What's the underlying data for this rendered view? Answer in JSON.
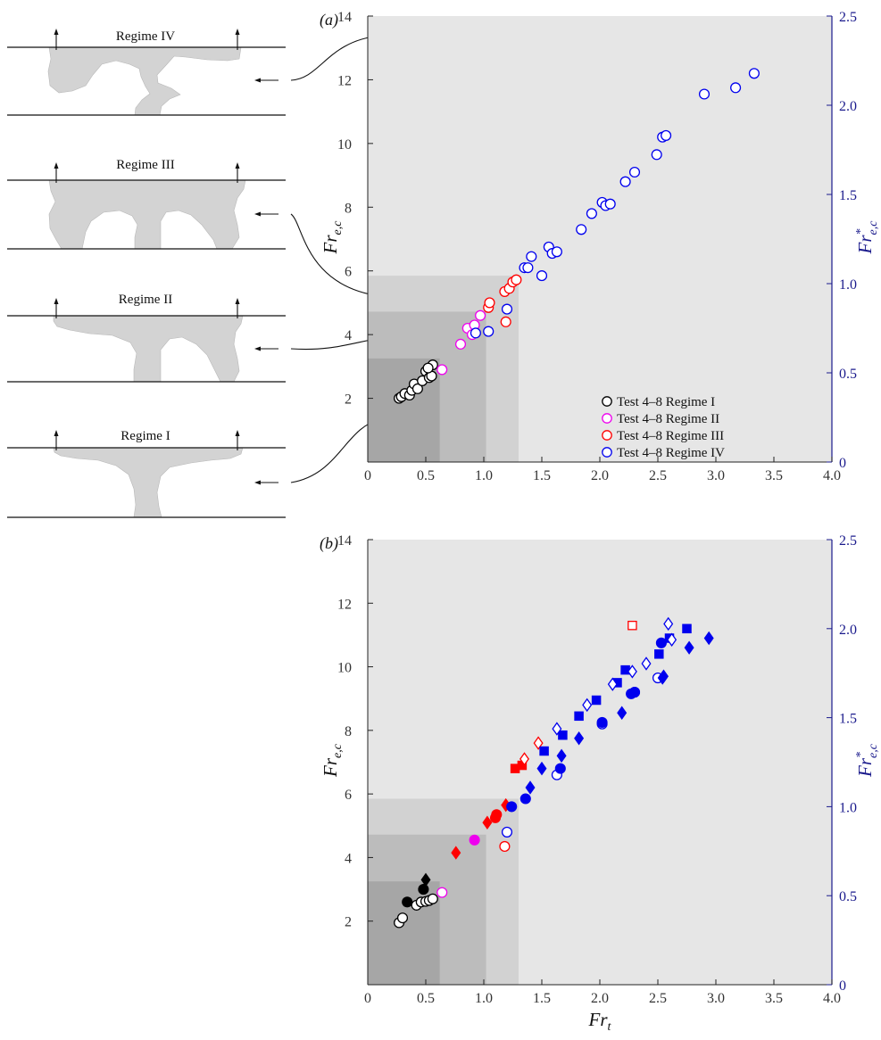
{
  "colors": {
    "outer_band": "#e6e6e6",
    "band_III": "#d2d2d2",
    "band_II": "#bcbcbc",
    "band_I": "#a6a6a6",
    "plume": "#d3d3d3",
    "regime_I": "#000000",
    "regime_II": "#ee00ee",
    "regime_III": "#ff0000",
    "regime_IV": "#0000ee",
    "right_axis": "#1a1a8c"
  },
  "schematics": [
    {
      "label": "Regime IV",
      "shape": "regime-iv"
    },
    {
      "label": "Regime III",
      "shape": "regime-iii"
    },
    {
      "label": "Regime II",
      "shape": "regime-ii"
    },
    {
      "label": "Regime I",
      "shape": "regime-i"
    }
  ],
  "chart_data": [
    {
      "type": "scatter",
      "panel": "(a)",
      "xlabel": "",
      "ylabel": "Fr",
      "ylabel_sub": "e,c",
      "ylabel2": "Fr",
      "ylabel2_sup": "*",
      "ylabel2_sub": "e,c",
      "xlim": [
        0,
        4.0
      ],
      "ylim": [
        0,
        14
      ],
      "y2lim": [
        0,
        2.5
      ],
      "xticks": [
        "0",
        "0.5",
        "1.0",
        "1.5",
        "2.0",
        "2.5",
        "3.0",
        "3.5",
        "4.0"
      ],
      "yticks": [
        "2",
        "4",
        "6",
        "8",
        "10",
        "12",
        "14"
      ],
      "y2ticks": [
        "0",
        "0.5",
        "1.0",
        "1.5",
        "2.0",
        "2.5"
      ],
      "regions": [
        {
          "x_max": 1.3,
          "y_max": 5.85
        },
        {
          "x_max": 1.02,
          "y_max": 4.72
        },
        {
          "x_max": 0.62,
          "y_max": 3.25
        }
      ],
      "legend": {
        "placement": "bottom-right",
        "entries": [
          {
            "label": "Test 4–8 Regime I",
            "color": "#000000"
          },
          {
            "label": "Test 4–8 Regime II",
            "color": "#ee00ee"
          },
          {
            "label": "Test 4–8 Regime III",
            "color": "#ff0000"
          },
          {
            "label": "Test 4–8 Regime IV",
            "color": "#0000ee"
          }
        ]
      },
      "series": [
        {
          "regime": "I",
          "marker": "circle",
          "filled": false,
          "color": "#000000",
          "points": [
            [
              0.27,
              2.0
            ],
            [
              0.29,
              2.05
            ],
            [
              0.32,
              2.15
            ],
            [
              0.36,
              2.1
            ],
            [
              0.38,
              2.25
            ],
            [
              0.4,
              2.45
            ],
            [
              0.43,
              2.3
            ],
            [
              0.47,
              2.55
            ],
            [
              0.5,
              2.85
            ],
            [
              0.53,
              2.65
            ],
            [
              0.55,
              2.7
            ],
            [
              0.56,
              3.05
            ],
            [
              0.52,
              2.95
            ]
          ]
        },
        {
          "regime": "II",
          "marker": "circle",
          "filled": false,
          "color": "#ee00ee",
          "points": [
            [
              0.64,
              2.9
            ],
            [
              0.8,
              3.7
            ],
            [
              0.86,
              4.2
            ],
            [
              0.92,
              4.3
            ],
            [
              0.97,
              4.6
            ],
            [
              0.9,
              4.0
            ]
          ]
        },
        {
          "regime": "III",
          "marker": "circle",
          "filled": false,
          "color": "#ff0000",
          "points": [
            [
              1.04,
              4.85
            ],
            [
              1.05,
              5.0
            ],
            [
              1.18,
              5.35
            ],
            [
              1.22,
              5.45
            ],
            [
              1.25,
              5.65
            ],
            [
              1.28,
              5.72
            ],
            [
              1.19,
              4.4
            ]
          ]
        },
        {
          "regime": "IV",
          "marker": "circle",
          "filled": false,
          "color": "#0000ee",
          "points": [
            [
              0.93,
              4.05
            ],
            [
              1.04,
              4.1
            ],
            [
              1.2,
              4.8
            ],
            [
              1.35,
              6.1
            ],
            [
              1.38,
              6.1
            ],
            [
              1.41,
              6.45
            ],
            [
              1.5,
              5.85
            ],
            [
              1.56,
              6.75
            ],
            [
              1.59,
              6.55
            ],
            [
              1.63,
              6.6
            ],
            [
              1.84,
              7.3
            ],
            [
              1.93,
              7.8
            ],
            [
              2.02,
              8.15
            ],
            [
              2.05,
              8.05
            ],
            [
              2.09,
              8.1
            ],
            [
              2.22,
              8.8
            ],
            [
              2.3,
              9.1
            ],
            [
              2.49,
              9.65
            ],
            [
              2.54,
              10.2
            ],
            [
              2.57,
              10.25
            ],
            [
              2.9,
              11.55
            ],
            [
              3.17,
              11.75
            ],
            [
              3.33,
              12.2
            ]
          ]
        }
      ]
    },
    {
      "type": "scatter",
      "panel": "(b)",
      "xlabel": "Fr",
      "xlabel_sub": "t",
      "ylabel": "Fr",
      "ylabel_sub": "e,c",
      "ylabel2": "Fr",
      "ylabel2_sup": "*",
      "ylabel2_sub": "e,c",
      "xlim": [
        0,
        4.0
      ],
      "ylim": [
        0,
        14
      ],
      "y2lim": [
        0,
        2.5
      ],
      "xticks": [
        "0",
        "0.5",
        "1.0",
        "1.5",
        "2.0",
        "2.5",
        "3.0",
        "3.5",
        "4.0"
      ],
      "yticks": [
        "2",
        "4",
        "6",
        "8",
        "10",
        "12",
        "14"
      ],
      "y2ticks": [
        "0",
        "0.5",
        "1.0",
        "1.5",
        "2.0",
        "2.5"
      ],
      "regions": [
        {
          "x_max": 1.3,
          "y_max": 5.85
        },
        {
          "x_max": 1.02,
          "y_max": 4.72
        },
        {
          "x_max": 0.62,
          "y_max": 3.25
        }
      ],
      "series": [
        {
          "regime": "I",
          "marker": "circle",
          "filled": false,
          "color": "#000000",
          "points": [
            [
              0.27,
              1.95
            ],
            [
              0.3,
              2.1
            ],
            [
              0.42,
              2.5
            ],
            [
              0.46,
              2.6
            ],
            [
              0.5,
              2.62
            ],
            [
              0.53,
              2.65
            ],
            [
              0.56,
              2.7
            ]
          ]
        },
        {
          "regime": "I",
          "marker": "circle",
          "filled": true,
          "color": "#000000",
          "points": [
            [
              0.34,
              2.6
            ],
            [
              0.48,
              3.0
            ]
          ]
        },
        {
          "regime": "I",
          "marker": "diamond",
          "filled": true,
          "color": "#000000",
          "points": [
            [
              0.5,
              3.3
            ]
          ]
        },
        {
          "regime": "II",
          "marker": "circle",
          "filled": false,
          "color": "#ee00ee",
          "points": [
            [
              0.64,
              2.9
            ]
          ]
        },
        {
          "regime": "II",
          "marker": "circle",
          "filled": true,
          "color": "#ee00ee",
          "points": [
            [
              0.92,
              4.55
            ]
          ]
        },
        {
          "regime": "III",
          "marker": "diamond",
          "filled": true,
          "color": "#ff0000",
          "points": [
            [
              0.76,
              4.15
            ],
            [
              1.03,
              5.1
            ],
            [
              1.19,
              5.65
            ]
          ]
        },
        {
          "regime": "III",
          "marker": "circle",
          "filled": true,
          "color": "#ff0000",
          "points": [
            [
              1.1,
              5.25
            ],
            [
              1.11,
              5.35
            ]
          ]
        },
        {
          "regime": "III",
          "marker": "square",
          "filled": true,
          "color": "#ff0000",
          "points": [
            [
              1.27,
              6.8
            ],
            [
              1.33,
              6.9
            ]
          ]
        },
        {
          "regime": "III",
          "marker": "diamond",
          "filled": false,
          "color": "#ff0000",
          "points": [
            [
              1.35,
              7.1
            ],
            [
              1.47,
              7.6
            ]
          ]
        },
        {
          "regime": "III",
          "marker": "circle",
          "filled": false,
          "color": "#ff0000",
          "points": [
            [
              1.18,
              4.35
            ]
          ]
        },
        {
          "regime": "III",
          "marker": "square",
          "filled": false,
          "color": "#ff0000",
          "points": [
            [
              2.28,
              11.3
            ]
          ]
        },
        {
          "regime": "IV",
          "marker": "circle",
          "filled": false,
          "color": "#0000ee",
          "points": [
            [
              1.2,
              4.8
            ],
            [
              1.63,
              6.6
            ],
            [
              2.02,
              8.2
            ],
            [
              2.3,
              9.2
            ],
            [
              2.5,
              9.65
            ]
          ]
        },
        {
          "regime": "IV",
          "marker": "circle",
          "filled": true,
          "color": "#0000ee",
          "points": [
            [
              1.24,
              5.6
            ],
            [
              1.36,
              5.85
            ],
            [
              1.66,
              6.8
            ],
            [
              2.02,
              8.25
            ],
            [
              2.27,
              9.15
            ],
            [
              2.3,
              9.2
            ],
            [
              2.53,
              10.75
            ]
          ]
        },
        {
          "regime": "IV",
          "marker": "diamond",
          "filled": true,
          "color": "#0000ee",
          "points": [
            [
              1.4,
              6.2
            ],
            [
              1.5,
              6.8
            ],
            [
              1.67,
              7.2
            ],
            [
              1.82,
              7.75
            ],
            [
              2.19,
              8.55
            ],
            [
              2.54,
              9.65
            ],
            [
              2.55,
              9.7
            ],
            [
              2.77,
              10.6
            ],
            [
              2.94,
              10.9
            ]
          ]
        },
        {
          "regime": "IV",
          "marker": "square",
          "filled": true,
          "color": "#0000ee",
          "points": [
            [
              1.52,
              7.35
            ],
            [
              1.68,
              7.85
            ],
            [
              1.82,
              8.45
            ],
            [
              1.97,
              8.95
            ],
            [
              2.15,
              9.5
            ],
            [
              2.22,
              9.9
            ],
            [
              2.51,
              10.4
            ],
            [
              2.6,
              10.9
            ],
            [
              2.75,
              11.2
            ]
          ]
        },
        {
          "regime": "IV",
          "marker": "diamond",
          "filled": false,
          "color": "#0000ee",
          "points": [
            [
              1.63,
              8.05
            ],
            [
              1.89,
              8.8
            ],
            [
              2.11,
              9.45
            ],
            [
              2.28,
              9.85
            ],
            [
              2.4,
              10.1
            ],
            [
              2.59,
              11.35
            ],
            [
              2.62,
              10.85
            ]
          ]
        }
      ]
    }
  ]
}
